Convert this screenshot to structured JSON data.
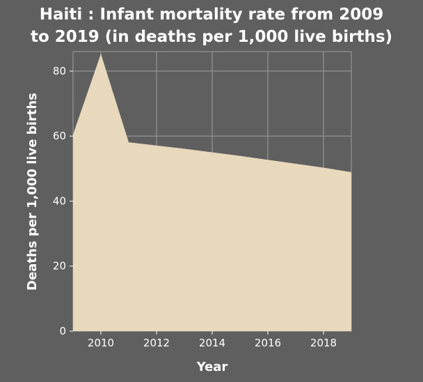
{
  "chart_data": {
    "type": "area",
    "title_line1": "Haiti : Infant mortality rate from 2009",
    "title_line2": "to 2019 (in deaths per 1,000 live births)",
    "xlabel": "Year",
    "ylabel": "Deaths per 1,000 live births",
    "x": [
      2009,
      2010,
      2011,
      2012,
      2013,
      2014,
      2015,
      2016,
      2017,
      2018,
      2019
    ],
    "values": [
      60.5,
      85.3,
      58.1,
      57.1,
      56.1,
      55.0,
      53.9,
      52.7,
      51.5,
      50.3,
      48.9
    ],
    "xlim": [
      2009,
      2019
    ],
    "ylim": [
      0,
      86
    ],
    "x_ticks": [
      2010,
      2012,
      2014,
      2016,
      2018
    ],
    "y_ticks": [
      0,
      20,
      40,
      60,
      80
    ],
    "grid": true,
    "colors": {
      "background": "#5f5f5f",
      "area_fill": "#e8d8bc",
      "grid": "#8a8a8a",
      "text": "#ffffff"
    }
  }
}
